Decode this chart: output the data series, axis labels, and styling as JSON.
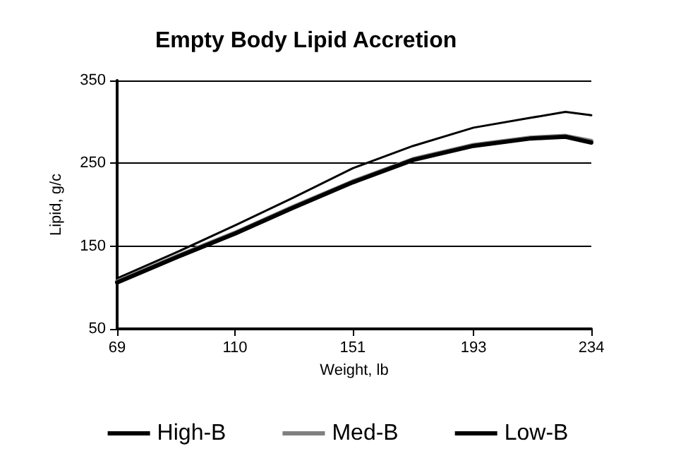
{
  "chart_data": {
    "type": "line",
    "title": "Empty Body Lipid Accretion",
    "xlabel": "Weight, lb",
    "ylabel": "Lipid, g/c",
    "x": [
      69,
      90,
      110,
      130,
      151,
      172,
      193,
      213,
      225,
      234
    ],
    "series": [
      {
        "name": "High-B",
        "color": "#000000",
        "values": [
          106,
          137,
          165,
          196,
          227,
          254,
          271,
          280,
          282,
          275
        ]
      },
      {
        "name": "Med-B",
        "color": "#808080",
        "values": [
          107,
          138,
          166,
          197,
          228,
          255,
          272,
          281,
          283,
          277
        ]
      },
      {
        "name": "Low-B",
        "color": "#000000",
        "values": [
          111,
          143,
          175,
          208,
          244,
          271,
          293,
          305,
          312,
          308
        ]
      }
    ],
    "xlim": [
      69,
      234
    ],
    "xticks": [
      69,
      110,
      151,
      193,
      234
    ],
    "ylim": [
      50,
      350
    ],
    "yticks": [
      50,
      150,
      250,
      350
    ],
    "grid": "y",
    "legend": "bottom",
    "marker": "none",
    "line_style": "solid"
  }
}
